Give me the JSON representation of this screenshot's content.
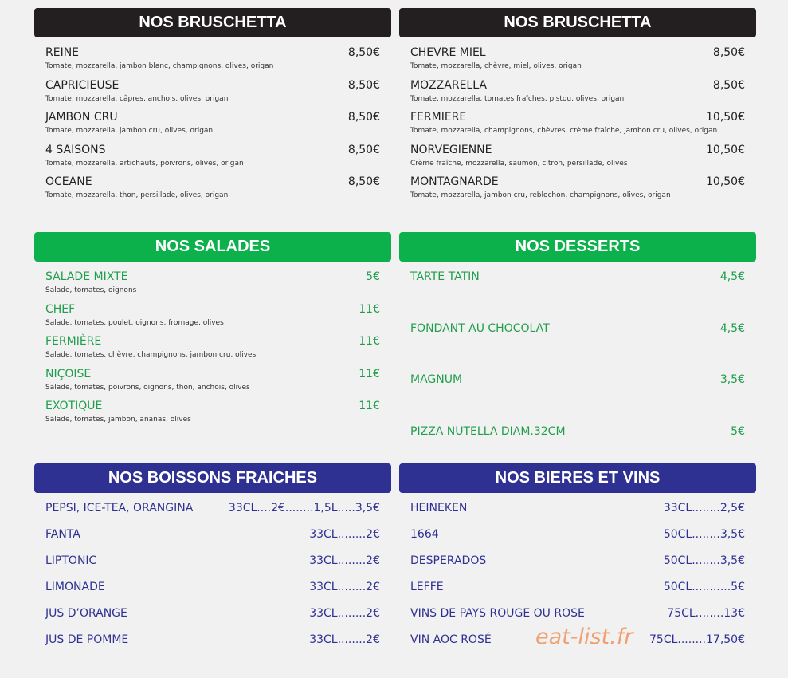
{
  "sections": [
    {
      "title": "NOS BRUSCHETTA",
      "items": [
        {
          "name": "REINE",
          "desc": "Tomate, mozzarella, jambon blanc, champignons, olives, origan",
          "price": "8,50€"
        },
        {
          "name": "CAPRICIEUSE",
          "desc": "Tomate, mozzarella, câpres, anchois, olives, origan",
          "price": "8,50€"
        },
        {
          "name": "JAMBON CRU",
          "desc": "Tomate, mozzarella, jambon cru, olives, origan",
          "price": "8,50€"
        },
        {
          "name": "4 SAISONS",
          "desc": "Tomate, mozzarella, artichauts, poivrons, olives, origan",
          "price": "8,50€"
        },
        {
          "name": "OCEANE",
          "desc": "Tomate, mozzarella, thon, persillade, olives, origan",
          "price": "8,50€"
        }
      ]
    },
    {
      "title": "NOS BRUSCHETTA",
      "items": [
        {
          "name": "CHEVRE MIEL",
          "desc": "Tomate, mozzarella, chèvre, miel, olives, origan",
          "price": "8,50€"
        },
        {
          "name": "MOZZARELLA",
          "desc": "Tomate, mozzarella, tomates fraîches, pistou, olives, origan",
          "price": "8,50€"
        },
        {
          "name": "FERMIERE",
          "desc": "Tomate, mozzarella, champignons, chèvres, crème fraîche, jambon cru, olives, origan",
          "price": "10,50€"
        },
        {
          "name": "NORVEGIENNE",
          "desc": "Crème fraîche, mozzarella, saumon, citron, persillade, olives",
          "price": "10,50€"
        },
        {
          "name": "MONTAGNARDE",
          "desc": "Tomate, mozzarella, jambon cru, reblochon, champignons, olives, origan",
          "price": "10,50€"
        }
      ]
    },
    {
      "title": "NOS SALADES",
      "items": [
        {
          "name": "SALADE MIXTE",
          "desc": "Salade, tomates, oignons",
          "price": "5€"
        },
        {
          "name": "CHEF",
          "desc": "Salade, tomates, poulet, oignons, fromage, olives",
          "price": "11€"
        },
        {
          "name": "FERMIÈRE",
          "desc": "Salade, tomates, chèvre, champignons, jambon cru, olives",
          "price": "11€"
        },
        {
          "name": "NIÇOISE",
          "desc": "Salade, tomates, poivrons, oignons, thon, anchois, olives",
          "price": "11€"
        },
        {
          "name": "EXOTIQUE",
          "desc": "Salade, tomates, jambon, ananas, olives",
          "price": "11€"
        }
      ]
    },
    {
      "title": "NOS DESSERTS",
      "items": [
        {
          "name": "TARTE TATIN",
          "price": "4,5€"
        },
        {
          "name": "FONDANT AU CHOCOLAT",
          "price": "4,5€"
        },
        {
          "name": "MAGNUM",
          "price": "3,5€"
        },
        {
          "name": "PIZZA NUTELLA DIAM.32CM",
          "price": "5€"
        }
      ]
    },
    {
      "title": "NOS BOISSONS FRAICHES",
      "items": [
        {
          "name": "PEPSI, ICE-TEA, ORANGINA",
          "price": "33CL....2€........1,5L.....3,5€"
        },
        {
          "name": "FANTA",
          "price": "33CL........2€"
        },
        {
          "name": "LIPTONIC",
          "price": "33CL........2€"
        },
        {
          "name": "LIMONADE",
          "price": "33CL........2€"
        },
        {
          "name": "JUS D’ORANGE",
          "price": "33CL........2€"
        },
        {
          "name": "JUS DE POMME",
          "price": "33CL........2€"
        }
      ]
    },
    {
      "title": "NOS BIERES ET VINS",
      "items": [
        {
          "name": "HEINEKEN",
          "price": "33CL........2,5€"
        },
        {
          "name": "1664",
          "price": "50CL........3,5€"
        },
        {
          "name": "DESPERADOS",
          "price": "50CL........3,5€"
        },
        {
          "name": "LEFFE",
          "price": "50CL...........5€"
        },
        {
          "name": "VINS DE PAYS ROUGE OU ROSE",
          "price": "75CL........13€"
        },
        {
          "name": "VIN AOC ROSÉ",
          "price": "75CL........17,50€"
        }
      ]
    }
  ],
  "watermark": "eat-list.fr"
}
